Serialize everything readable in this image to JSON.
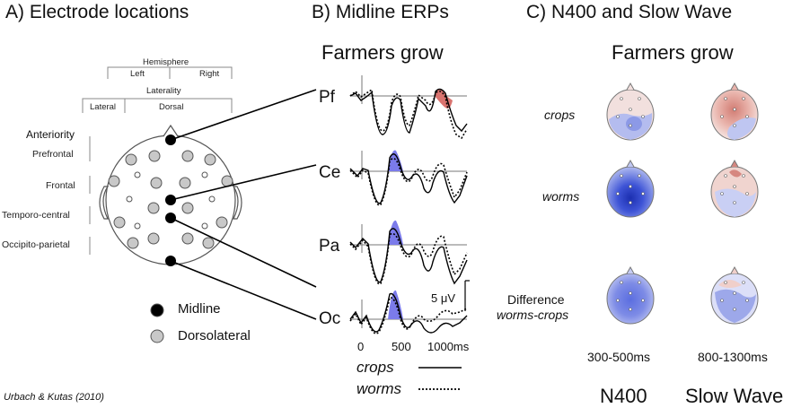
{
  "panels": {
    "a_title": "A) Electrode locations",
    "b_title": "B) Midline ERPs",
    "c_title": "C) N400 and Slow Wave"
  },
  "panel_a": {
    "hemisphere": "Hemisphere",
    "left": "Left",
    "right": "Right",
    "laterality": "Laterality",
    "lateral": "Lateral",
    "dorsal": "Dorsal",
    "anteriority": "Anteriority",
    "rows": [
      "Prefrontal",
      "Frontal",
      "Temporo-central",
      "Occipito-parietal"
    ],
    "legend": {
      "midline": "Midline",
      "dorsolateral": "Dorsolateral"
    },
    "colors": {
      "midline": "#000000",
      "dorsolateral": "#c8c8c8"
    }
  },
  "panel_b": {
    "sentence": "Farmers grow",
    "channels": [
      "Pf",
      "Ce",
      "Pa",
      "Oc"
    ],
    "scale": "5 μV",
    "x_ticks": [
      "0",
      "500",
      "1000ms"
    ],
    "legend": {
      "crops": "crops",
      "worms": "worms"
    },
    "colors": {
      "n400_fill": "#7b7bea",
      "slow_wave_fill": "#d9736f"
    }
  },
  "panel_c": {
    "sentence": "Farmers grow",
    "conditions": [
      "crops",
      "worms"
    ],
    "difference_line1": "Difference",
    "difference_line2": "worms-crops",
    "windows": [
      "300-500ms",
      "800-1300ms"
    ],
    "components": [
      "N400",
      "Slow Wave"
    ]
  },
  "citation": "Urbach & Kutas (2010)"
}
